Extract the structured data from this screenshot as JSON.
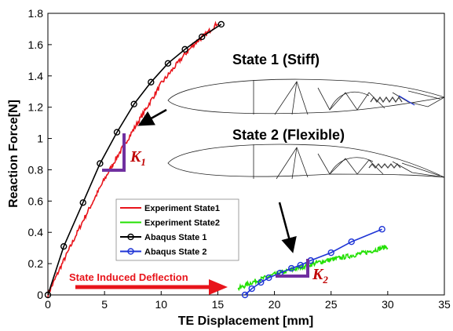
{
  "chart_data": {
    "type": "line",
    "xlabel": "TE Displacement [mm]",
    "ylabel": "Reaction Force[N]",
    "xlim": [
      0,
      35
    ],
    "ylim": [
      0,
      1.8
    ],
    "xticks": [
      "0",
      "5",
      "10",
      "15",
      "20",
      "25",
      "30",
      "35"
    ],
    "yticks": [
      "0",
      "0.2",
      "0.4",
      "0.6",
      "0.8",
      "1",
      "1.2",
      "1.4",
      "1.6",
      "1.8"
    ],
    "grid": false,
    "legend_position": "lower-center",
    "series": [
      {
        "name": "Experiment State1",
        "color": "#e8141b",
        "style": "noisy-line",
        "x": [
          0,
          1,
          2,
          3,
          4,
          5,
          6,
          7,
          8,
          9,
          10,
          11,
          12,
          13,
          14,
          15
        ],
        "y": [
          0,
          0.16,
          0.31,
          0.46,
          0.6,
          0.74,
          0.87,
          0.99,
          1.11,
          1.23,
          1.35,
          1.44,
          1.53,
          1.61,
          1.67,
          1.74
        ]
      },
      {
        "name": "Experiment State2",
        "color": "#22e000",
        "style": "noisy-line",
        "x": [
          16.8,
          18,
          20,
          22,
          24,
          26,
          28,
          30
        ],
        "y": [
          0.04,
          0.08,
          0.13,
          0.17,
          0.21,
          0.24,
          0.27,
          0.31
        ]
      },
      {
        "name": "Abaqus State 1",
        "color": "#000000",
        "style": "line-circle",
        "x": [
          0,
          1.4,
          3.1,
          4.6,
          6.1,
          7.6,
          9.1,
          10.6,
          12.1,
          13.6,
          15.3
        ],
        "y": [
          0,
          0.31,
          0.59,
          0.84,
          1.04,
          1.22,
          1.36,
          1.48,
          1.57,
          1.65,
          1.73
        ]
      },
      {
        "name": "Abaqus State 2",
        "color": "#1f35d6",
        "style": "line-circle",
        "x": [
          17.4,
          18.0,
          18.8,
          19.5,
          20.5,
          21.5,
          22.3,
          23.2,
          25.0,
          26.8,
          29.5
        ],
        "y": [
          0.0,
          0.04,
          0.08,
          0.11,
          0.14,
          0.17,
          0.19,
          0.22,
          0.27,
          0.34,
          0.42
        ]
      }
    ],
    "annotations": {
      "state1_label": "State 1 (Stiff)",
      "state2_label": "State 2 (Flexible)",
      "deflection_label": "State Induced Deflection",
      "k1": {
        "symbol": "K",
        "subscript": "1"
      },
      "k2": {
        "symbol": "K",
        "subscript": "2"
      },
      "arrow_color": "#e8141b",
      "triangle_color": "#7030a0",
      "k_color": "#c00000"
    }
  }
}
